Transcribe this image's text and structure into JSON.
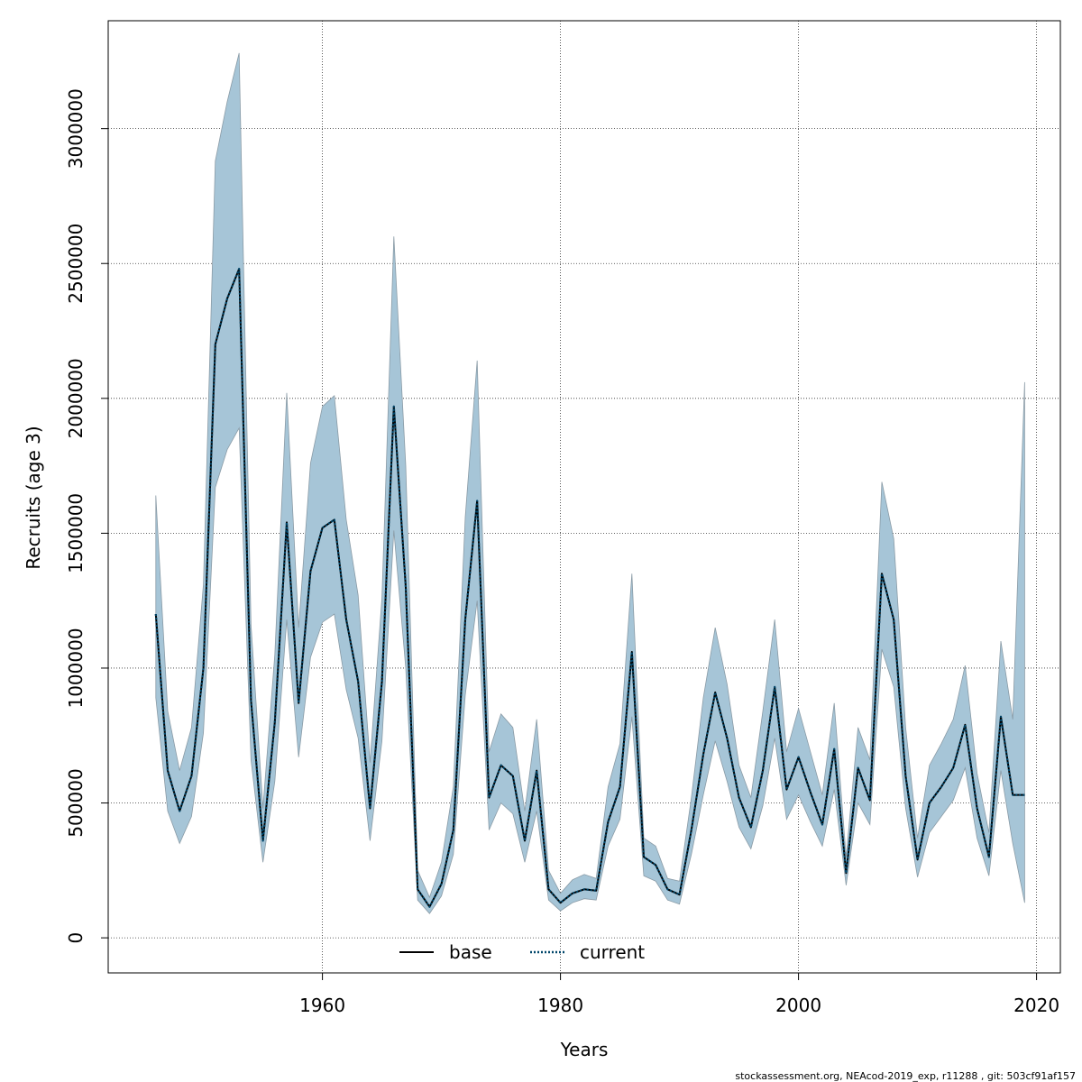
{
  "chart_data": {
    "type": "line",
    "title": "",
    "xlabel": "Years",
    "ylabel": "Recruits (age 3)",
    "xlim": [
      1942,
      2022
    ],
    "ylim": [
      -130000,
      3400000
    ],
    "x_ticks": [
      1960,
      1980,
      2000,
      2020
    ],
    "x_tick_labels": [
      "1960",
      "1980",
      "2000",
      "2020"
    ],
    "y_ticks": [
      0,
      500000,
      1000000,
      1500000,
      2000000,
      2500000,
      3000000
    ],
    "y_tick_labels": [
      "0",
      "500000",
      "1000000",
      "1500000",
      "2000000",
      "2500000",
      "3000000"
    ],
    "grid": true,
    "legend_position": "bottom-center",
    "colors": {
      "band_fill": "#a6c5d7",
      "band_edge": "#8a9ba6",
      "base_line": "#000000",
      "current_line": "#00466a",
      "grid": "#333333"
    },
    "x": [
      1946,
      1947,
      1948,
      1949,
      1950,
      1951,
      1952,
      1953,
      1954,
      1955,
      1956,
      1957,
      1958,
      1959,
      1960,
      1961,
      1962,
      1963,
      1964,
      1965,
      1966,
      1967,
      1968,
      1969,
      1970,
      1971,
      1972,
      1973,
      1974,
      1975,
      1976,
      1977,
      1978,
      1979,
      1980,
      1981,
      1982,
      1983,
      1984,
      1985,
      1986,
      1987,
      1988,
      1989,
      1990,
      1991,
      1992,
      1993,
      1994,
      1995,
      1996,
      1997,
      1998,
      1999,
      2000,
      2001,
      2002,
      2003,
      2004,
      2005,
      2006,
      2007,
      2008,
      2009,
      2010,
      2011,
      2012,
      2013,
      2014,
      2015,
      2016,
      2017,
      2018,
      2019
    ],
    "series": [
      {
        "name": "base",
        "style": "solid",
        "values": [
          1200000,
          620000,
          470000,
          600000,
          1000000,
          2200000,
          2370000,
          2480000,
          880000,
          360000,
          800000,
          1540000,
          870000,
          1360000,
          1520000,
          1550000,
          1180000,
          950000,
          480000,
          950000,
          1970000,
          1300000,
          180000,
          115000,
          200000,
          400000,
          1180000,
          1620000,
          520000,
          640000,
          600000,
          360000,
          620000,
          180000,
          130000,
          165000,
          180000,
          175000,
          430000,
          560000,
          1060000,
          300000,
          270000,
          180000,
          160000,
          400000,
          680000,
          910000,
          740000,
          520000,
          410000,
          620000,
          930000,
          550000,
          670000,
          540000,
          420000,
          700000,
          240000,
          630000,
          510000,
          1350000,
          1180000,
          600000,
          290000,
          500000,
          560000,
          630000,
          790000,
          480000,
          300000,
          820000,
          530000,
          530000
        ]
      },
      {
        "name": "current",
        "style": "dotted",
        "values": [
          1200000,
          620000,
          470000,
          600000,
          1000000,
          2200000,
          2370000,
          2480000,
          880000,
          360000,
          800000,
          1540000,
          870000,
          1360000,
          1520000,
          1550000,
          1180000,
          950000,
          480000,
          950000,
          1970000,
          1300000,
          180000,
          115000,
          200000,
          400000,
          1180000,
          1620000,
          520000,
          640000,
          600000,
          360000,
          620000,
          180000,
          130000,
          165000,
          180000,
          175000,
          430000,
          560000,
          1060000,
          300000,
          270000,
          180000,
          160000,
          400000,
          680000,
          910000,
          740000,
          520000,
          410000,
          620000,
          930000,
          550000,
          670000,
          540000,
          420000,
          700000,
          240000,
          630000,
          510000,
          1350000,
          1180000,
          600000,
          290000,
          500000,
          560000,
          630000,
          790000,
          480000,
          300000,
          820000,
          530000,
          530000
        ]
      }
    ],
    "ci_lower": [
      890000,
      470000,
      350000,
      450000,
      760000,
      1670000,
      1810000,
      1890000,
      660000,
      280000,
      580000,
      1180000,
      670000,
      1040000,
      1170000,
      1200000,
      920000,
      740000,
      360000,
      730000,
      1510000,
      1000000,
      140000,
      90000,
      155000,
      310000,
      900000,
      1250000,
      400000,
      500000,
      460000,
      280000,
      470000,
      140000,
      100000,
      130000,
      145000,
      140000,
      340000,
      440000,
      820000,
      230000,
      210000,
      140000,
      125000,
      310000,
      530000,
      730000,
      580000,
      410000,
      330000,
      490000,
      740000,
      440000,
      530000,
      430000,
      340000,
      550000,
      195000,
      500000,
      420000,
      1070000,
      930000,
      480000,
      225000,
      390000,
      450000,
      510000,
      630000,
      370000,
      230000,
      620000,
      350000,
      130000
    ],
    "ci_upper": [
      1640000,
      840000,
      620000,
      780000,
      1310000,
      2880000,
      3100000,
      3280000,
      1160000,
      480000,
      1050000,
      2020000,
      1150000,
      1760000,
      1970000,
      2010000,
      1550000,
      1270000,
      650000,
      1260000,
      2600000,
      1750000,
      250000,
      150000,
      280000,
      560000,
      1560000,
      2140000,
      690000,
      830000,
      780000,
      470000,
      810000,
      250000,
      165000,
      215000,
      235000,
      220000,
      560000,
      720000,
      1350000,
      370000,
      340000,
      220000,
      210000,
      520000,
      890000,
      1150000,
      940000,
      640000,
      520000,
      840000,
      1180000,
      690000,
      850000,
      690000,
      530000,
      870000,
      300000,
      780000,
      660000,
      1690000,
      1480000,
      780000,
      370000,
      640000,
      720000,
      810000,
      1010000,
      610000,
      390000,
      1100000,
      810000,
      2060000
    ]
  },
  "legend": {
    "base_label": "base",
    "current_label": "current"
  },
  "footer_text": "stockassessment.org, NEAcod-2019_exp, r11288 , git: 503cf91af157"
}
